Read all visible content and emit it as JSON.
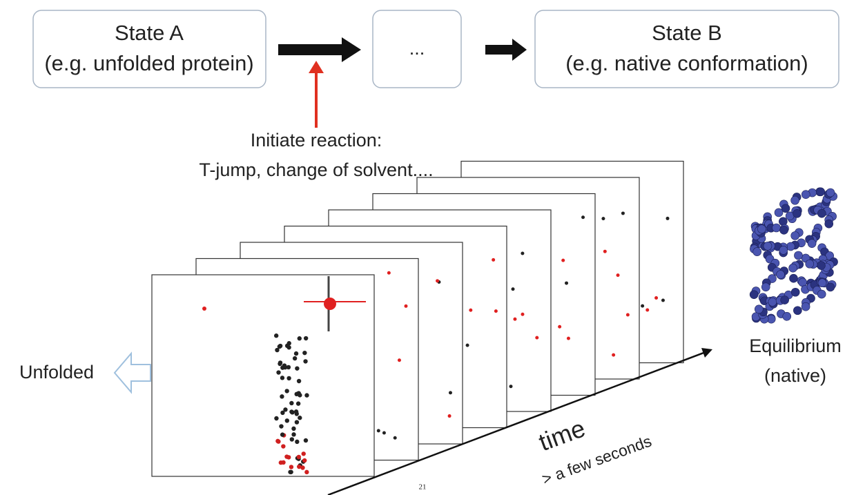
{
  "boxes": [
    {
      "title": "State A",
      "subtitle": "(e.g. unfolded protein)"
    },
    {
      "title": "..."
    },
    {
      "title": "State B",
      "subtitle": "(e.g. native conformation)"
    }
  ],
  "trigger": {
    "lines": [
      "Initiate reaction:",
      "T-jump, change of solvent...."
    ]
  },
  "start_label": "Unfolded",
  "end_label": {
    "lines": [
      "Equilibrium",
      "(native)"
    ]
  },
  "time_axis": {
    "label": "time",
    "sublabel": "> a few seconds"
  },
  "page_number": "21"
}
